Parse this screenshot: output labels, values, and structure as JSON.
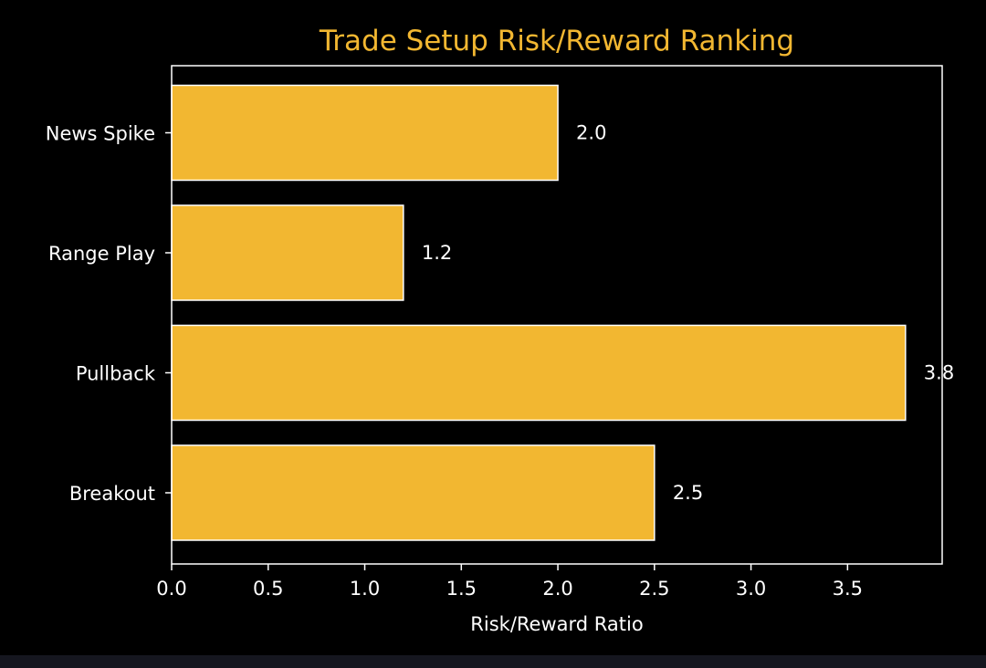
{
  "chart_data": {
    "type": "bar",
    "orientation": "horizontal",
    "title": "Trade Setup Risk/Reward Ranking",
    "xlabel": "Risk/Reward Ratio",
    "ylabel": "",
    "categories": [
      "Breakout",
      "Pullback",
      "Range Play",
      "News Spike"
    ],
    "values": [
      2.5,
      3.8,
      1.2,
      2.0
    ],
    "value_labels": [
      "2.5",
      "3.8",
      "1.2",
      "2.0"
    ],
    "xlim": [
      0,
      3.99
    ],
    "xticks": [
      0.0,
      0.5,
      1.0,
      1.5,
      2.0,
      2.5,
      3.0,
      3.5
    ],
    "xtick_labels": [
      "0.0",
      "0.5",
      "1.0",
      "1.5",
      "2.0",
      "2.5",
      "3.0",
      "3.5"
    ],
    "grid": false,
    "legend": "none",
    "colors": {
      "bar_fill": "#f2b731",
      "bar_edge": "#ffffff",
      "title": "#f2b731",
      "text": "#ffffff",
      "axes": "#ffffff",
      "background": "#000000"
    }
  }
}
